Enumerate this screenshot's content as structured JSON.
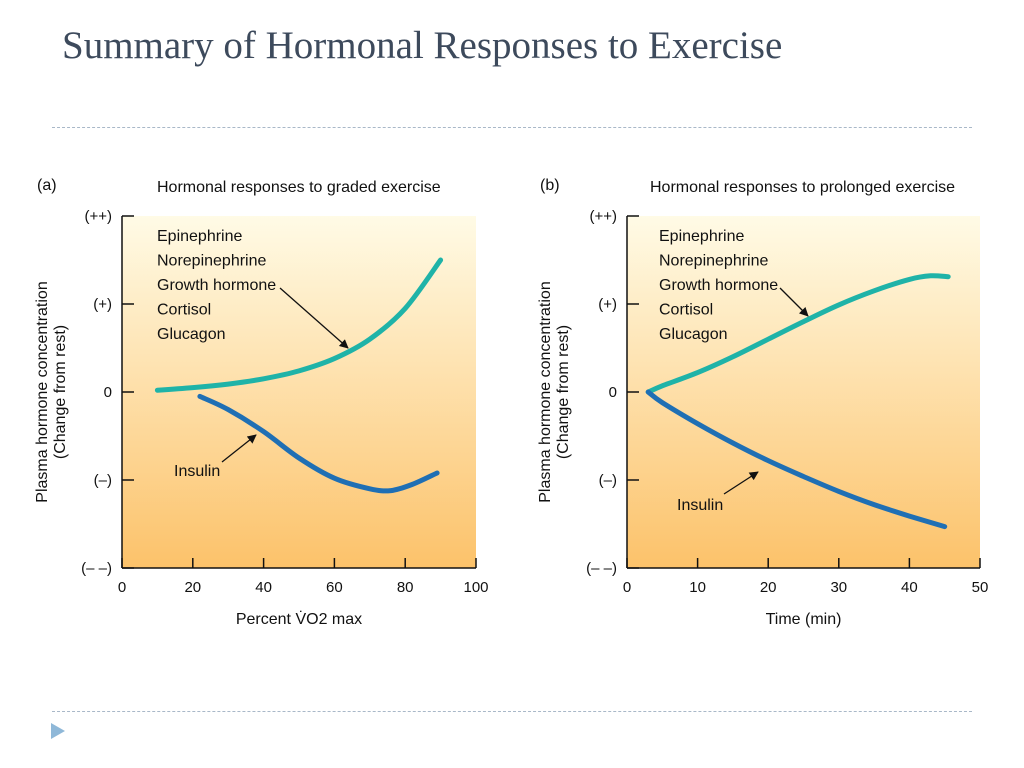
{
  "slide": {
    "title": "Summary of Hormonal Responses to Exercise"
  },
  "colors": {
    "title": "#3d4a5c",
    "hormone_up_curve": "#1fb3a8",
    "insulin_curve": "#1f6fb4",
    "panel_top": "#fffbe6",
    "panel_bottom": "#fcc26a"
  },
  "icons": {
    "nav": "triangle-right-icon"
  },
  "chart_data": [
    {
      "type": "line",
      "panel_label": "(a)",
      "title": "Hormonal responses to graded exercise",
      "xlabel": "Percent V̇O2 max",
      "ylabel": "Plasma hormone concentration",
      "ylabel2": "(Change from rest)",
      "xlim": [
        0,
        100
      ],
      "x_ticks": [
        0,
        20,
        40,
        60,
        80,
        100
      ],
      "y_levels": [
        -2,
        -1,
        0,
        1,
        2
      ],
      "y_tick_labels": [
        "(– –)",
        "(–)",
        "0",
        "(+)",
        "(++)"
      ],
      "series": [
        {
          "name": "Epinephrine\nNorepinephrine\nGrowth hormone\nCortisol\nGlucagon",
          "labels": [
            "Epinephrine",
            "Norepinephrine",
            "Growth hormone",
            "Cortisol",
            "Glucagon"
          ],
          "x": [
            10,
            20,
            30,
            40,
            50,
            60,
            70,
            80,
            90
          ],
          "y": [
            0.02,
            0.05,
            0.09,
            0.15,
            0.24,
            0.38,
            0.6,
            0.95,
            1.5
          ]
        },
        {
          "name": "Insulin",
          "labels": [
            "Insulin"
          ],
          "x": [
            22,
            30,
            40,
            50,
            60,
            70,
            76,
            82,
            89
          ],
          "y": [
            -0.05,
            -0.2,
            -0.45,
            -0.75,
            -0.98,
            -1.1,
            -1.12,
            -1.05,
            -0.92
          ]
        }
      ]
    },
    {
      "type": "line",
      "panel_label": "(b)",
      "title": "Hormonal responses to prolonged exercise",
      "xlabel": "Time (min)",
      "ylabel": "Plasma hormone concentration",
      "ylabel2": "(Change from rest)",
      "xlim": [
        0,
        50
      ],
      "x_ticks": [
        0,
        10,
        20,
        30,
        40,
        50
      ],
      "y_levels": [
        -2,
        -1,
        0,
        1,
        2
      ],
      "y_tick_labels": [
        "(– –)",
        "(–)",
        "0",
        "(+)",
        "(++)"
      ],
      "series": [
        {
          "name": "Epinephrine\nNorepinephrine\nGrowth hormone\nCortisol\nGlucagon",
          "labels": [
            "Epinephrine",
            "Norepinephrine",
            "Growth hormone",
            "Cortisol",
            "Glucagon"
          ],
          "x": [
            3,
            5,
            10,
            15,
            20,
            25,
            30,
            35,
            40,
            43,
            45.5
          ],
          "y": [
            0,
            0.07,
            0.22,
            0.4,
            0.6,
            0.8,
            0.99,
            1.15,
            1.28,
            1.32,
            1.31
          ]
        },
        {
          "name": "Insulin",
          "labels": [
            "Insulin"
          ],
          "x": [
            3,
            5,
            10,
            15,
            20,
            25,
            30,
            35,
            40,
            45
          ],
          "y": [
            0,
            -0.12,
            -0.36,
            -0.58,
            -0.78,
            -0.96,
            -1.13,
            -1.28,
            -1.41,
            -1.53
          ]
        }
      ]
    }
  ]
}
